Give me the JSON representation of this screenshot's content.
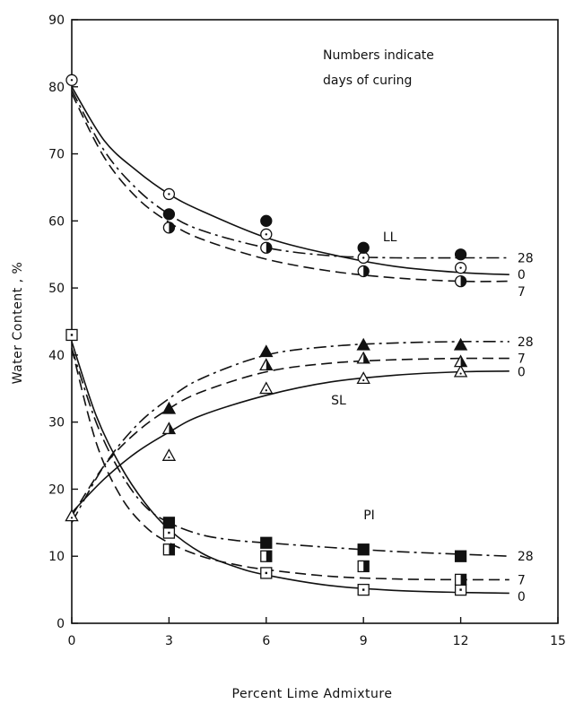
{
  "chart_data": {
    "type": "scatter",
    "title": "",
    "xlabel": "Percent Lime Admixture",
    "ylabel": "Water Content , %",
    "xlim": [
      0,
      15
    ],
    "ylim": [
      0,
      90
    ],
    "xticks": [
      0,
      3,
      6,
      9,
      12,
      15
    ],
    "yticks": [
      0,
      10,
      20,
      30,
      40,
      50,
      60,
      70,
      80,
      90
    ],
    "grid": false,
    "annotation": [
      "Numbers indicate",
      "days of curing"
    ],
    "group_labels": {
      "LL": "LL",
      "SL": "SL",
      "PI": "PI"
    },
    "series": [
      {
        "group": "LL",
        "curing": "0",
        "marker": "circle",
        "fill": "open",
        "line": "solid",
        "x": [
          0,
          3,
          6,
          9,
          12
        ],
        "y": [
          81,
          64,
          58,
          54.5,
          53
        ],
        "curve_x": [
          0,
          1,
          2,
          3,
          4,
          6,
          8,
          10,
          12,
          13.5
        ],
        "curve_y": [
          80,
          72,
          67.5,
          64,
          61.5,
          57.5,
          55,
          53.2,
          52.3,
          52
        ]
      },
      {
        "group": "LL",
        "curing": "7",
        "marker": "circle",
        "fill": "half",
        "line": "dashed",
        "x": [
          3,
          6,
          9,
          12
        ],
        "y": [
          59,
          56,
          52.5,
          51
        ],
        "curve_x": [
          0,
          1,
          2,
          3,
          4,
          6,
          8,
          10,
          12,
          13.5
        ],
        "curve_y": [
          79,
          69.5,
          63.5,
          59.8,
          57.3,
          54.3,
          52.5,
          51.5,
          51,
          51
        ]
      },
      {
        "group": "LL",
        "curing": "28",
        "marker": "circle",
        "fill": "filled",
        "line": "dashdot",
        "x": [
          3,
          6,
          9,
          12
        ],
        "y": [
          61,
          60,
          56,
          55
        ],
        "curve_x": [
          0,
          1,
          2,
          3,
          4,
          6,
          8,
          10,
          12,
          13.5
        ],
        "curve_y": [
          79.5,
          70.5,
          64.8,
          61,
          58.6,
          56,
          54.8,
          54.5,
          54.5,
          54.5
        ]
      },
      {
        "group": "SL",
        "curing": "0",
        "marker": "triangle",
        "fill": "open",
        "line": "solid",
        "x": [
          0,
          3,
          6,
          9,
          12
        ],
        "y": [
          16,
          25,
          35,
          36.5,
          37.5
        ],
        "curve_x": [
          0,
          1,
          2,
          3,
          4,
          6,
          8,
          10,
          12,
          13.5
        ],
        "curve_y": [
          16.5,
          21.5,
          25.5,
          28.5,
          31,
          34,
          36,
          37,
          37.5,
          37.6
        ]
      },
      {
        "group": "SL",
        "curing": "7",
        "marker": "triangle",
        "fill": "half",
        "line": "dashed",
        "x": [
          3,
          6,
          9,
          12
        ],
        "y": [
          29,
          38.5,
          39.5,
          39
        ],
        "curve_x": [
          0,
          1,
          2,
          3,
          4,
          6,
          8,
          10,
          12,
          13.5
        ],
        "curve_y": [
          16,
          23.5,
          28.5,
          32,
          34.5,
          37.5,
          38.8,
          39.3,
          39.5,
          39.5
        ]
      },
      {
        "group": "SL",
        "curing": "28",
        "marker": "triangle",
        "fill": "filled",
        "line": "dashdot",
        "x": [
          3,
          6,
          9,
          12
        ],
        "y": [
          32,
          40.5,
          41.5,
          41.5
        ],
        "curve_x": [
          0,
          1,
          2,
          3,
          4,
          6,
          8,
          10,
          12,
          13.5
        ],
        "curve_y": [
          15,
          23.5,
          29.5,
          33.5,
          36.5,
          40,
          41.3,
          41.8,
          42,
          42
        ]
      },
      {
        "group": "PI",
        "curing": "0",
        "marker": "square",
        "fill": "open",
        "line": "solid",
        "x": [
          0,
          3,
          6,
          9,
          12
        ],
        "y": [
          43,
          13.5,
          7.5,
          5,
          5
        ],
        "curve_x": [
          0,
          0.75,
          1.5,
          2.25,
          3,
          4,
          5,
          6,
          8,
          10,
          12,
          13.5
        ],
        "curve_y": [
          42,
          31,
          23.5,
          18,
          14,
          10.5,
          8.5,
          7.2,
          5.6,
          4.9,
          4.6,
          4.5
        ]
      },
      {
        "group": "PI",
        "curing": "7",
        "marker": "square",
        "fill": "half",
        "line": "dashed",
        "x": [
          3,
          6,
          9,
          12
        ],
        "y": [
          11,
          10,
          8.5,
          6.5
        ],
        "curve_x": [
          0,
          0.75,
          1.5,
          2.25,
          3,
          4,
          5,
          6,
          8,
          10,
          12,
          13.5
        ],
        "curve_y": [
          41,
          27,
          19,
          14.5,
          12,
          10,
          8.8,
          8,
          7,
          6.6,
          6.5,
          6.5
        ]
      },
      {
        "group": "PI",
        "curing": "28",
        "marker": "square",
        "fill": "filled",
        "line": "dashdot",
        "x": [
          3,
          6,
          9,
          12
        ],
        "y": [
          15,
          12,
          11,
          10
        ],
        "curve_x": [
          0,
          0.75,
          1.5,
          2.25,
          3,
          4,
          5,
          6,
          8,
          10,
          12,
          13.5
        ],
        "curve_y": [
          41,
          30,
          22.5,
          17.5,
          15,
          13.2,
          12.4,
          12,
          11.3,
          10.7,
          10.3,
          10
        ]
      }
    ],
    "curve_end_labels": [
      {
        "text": "28",
        "y": 54.5
      },
      {
        "text": "0",
        "y": 52
      },
      {
        "text": "7",
        "y": 49.5
      },
      {
        "text": "28",
        "y": 42
      },
      {
        "text": "7",
        "y": 39.5
      },
      {
        "text": "0",
        "y": 37.5
      },
      {
        "text": "28",
        "y": 10
      },
      {
        "text": "7",
        "y": 6.5
      },
      {
        "text": "0",
        "y": 4
      }
    ]
  }
}
